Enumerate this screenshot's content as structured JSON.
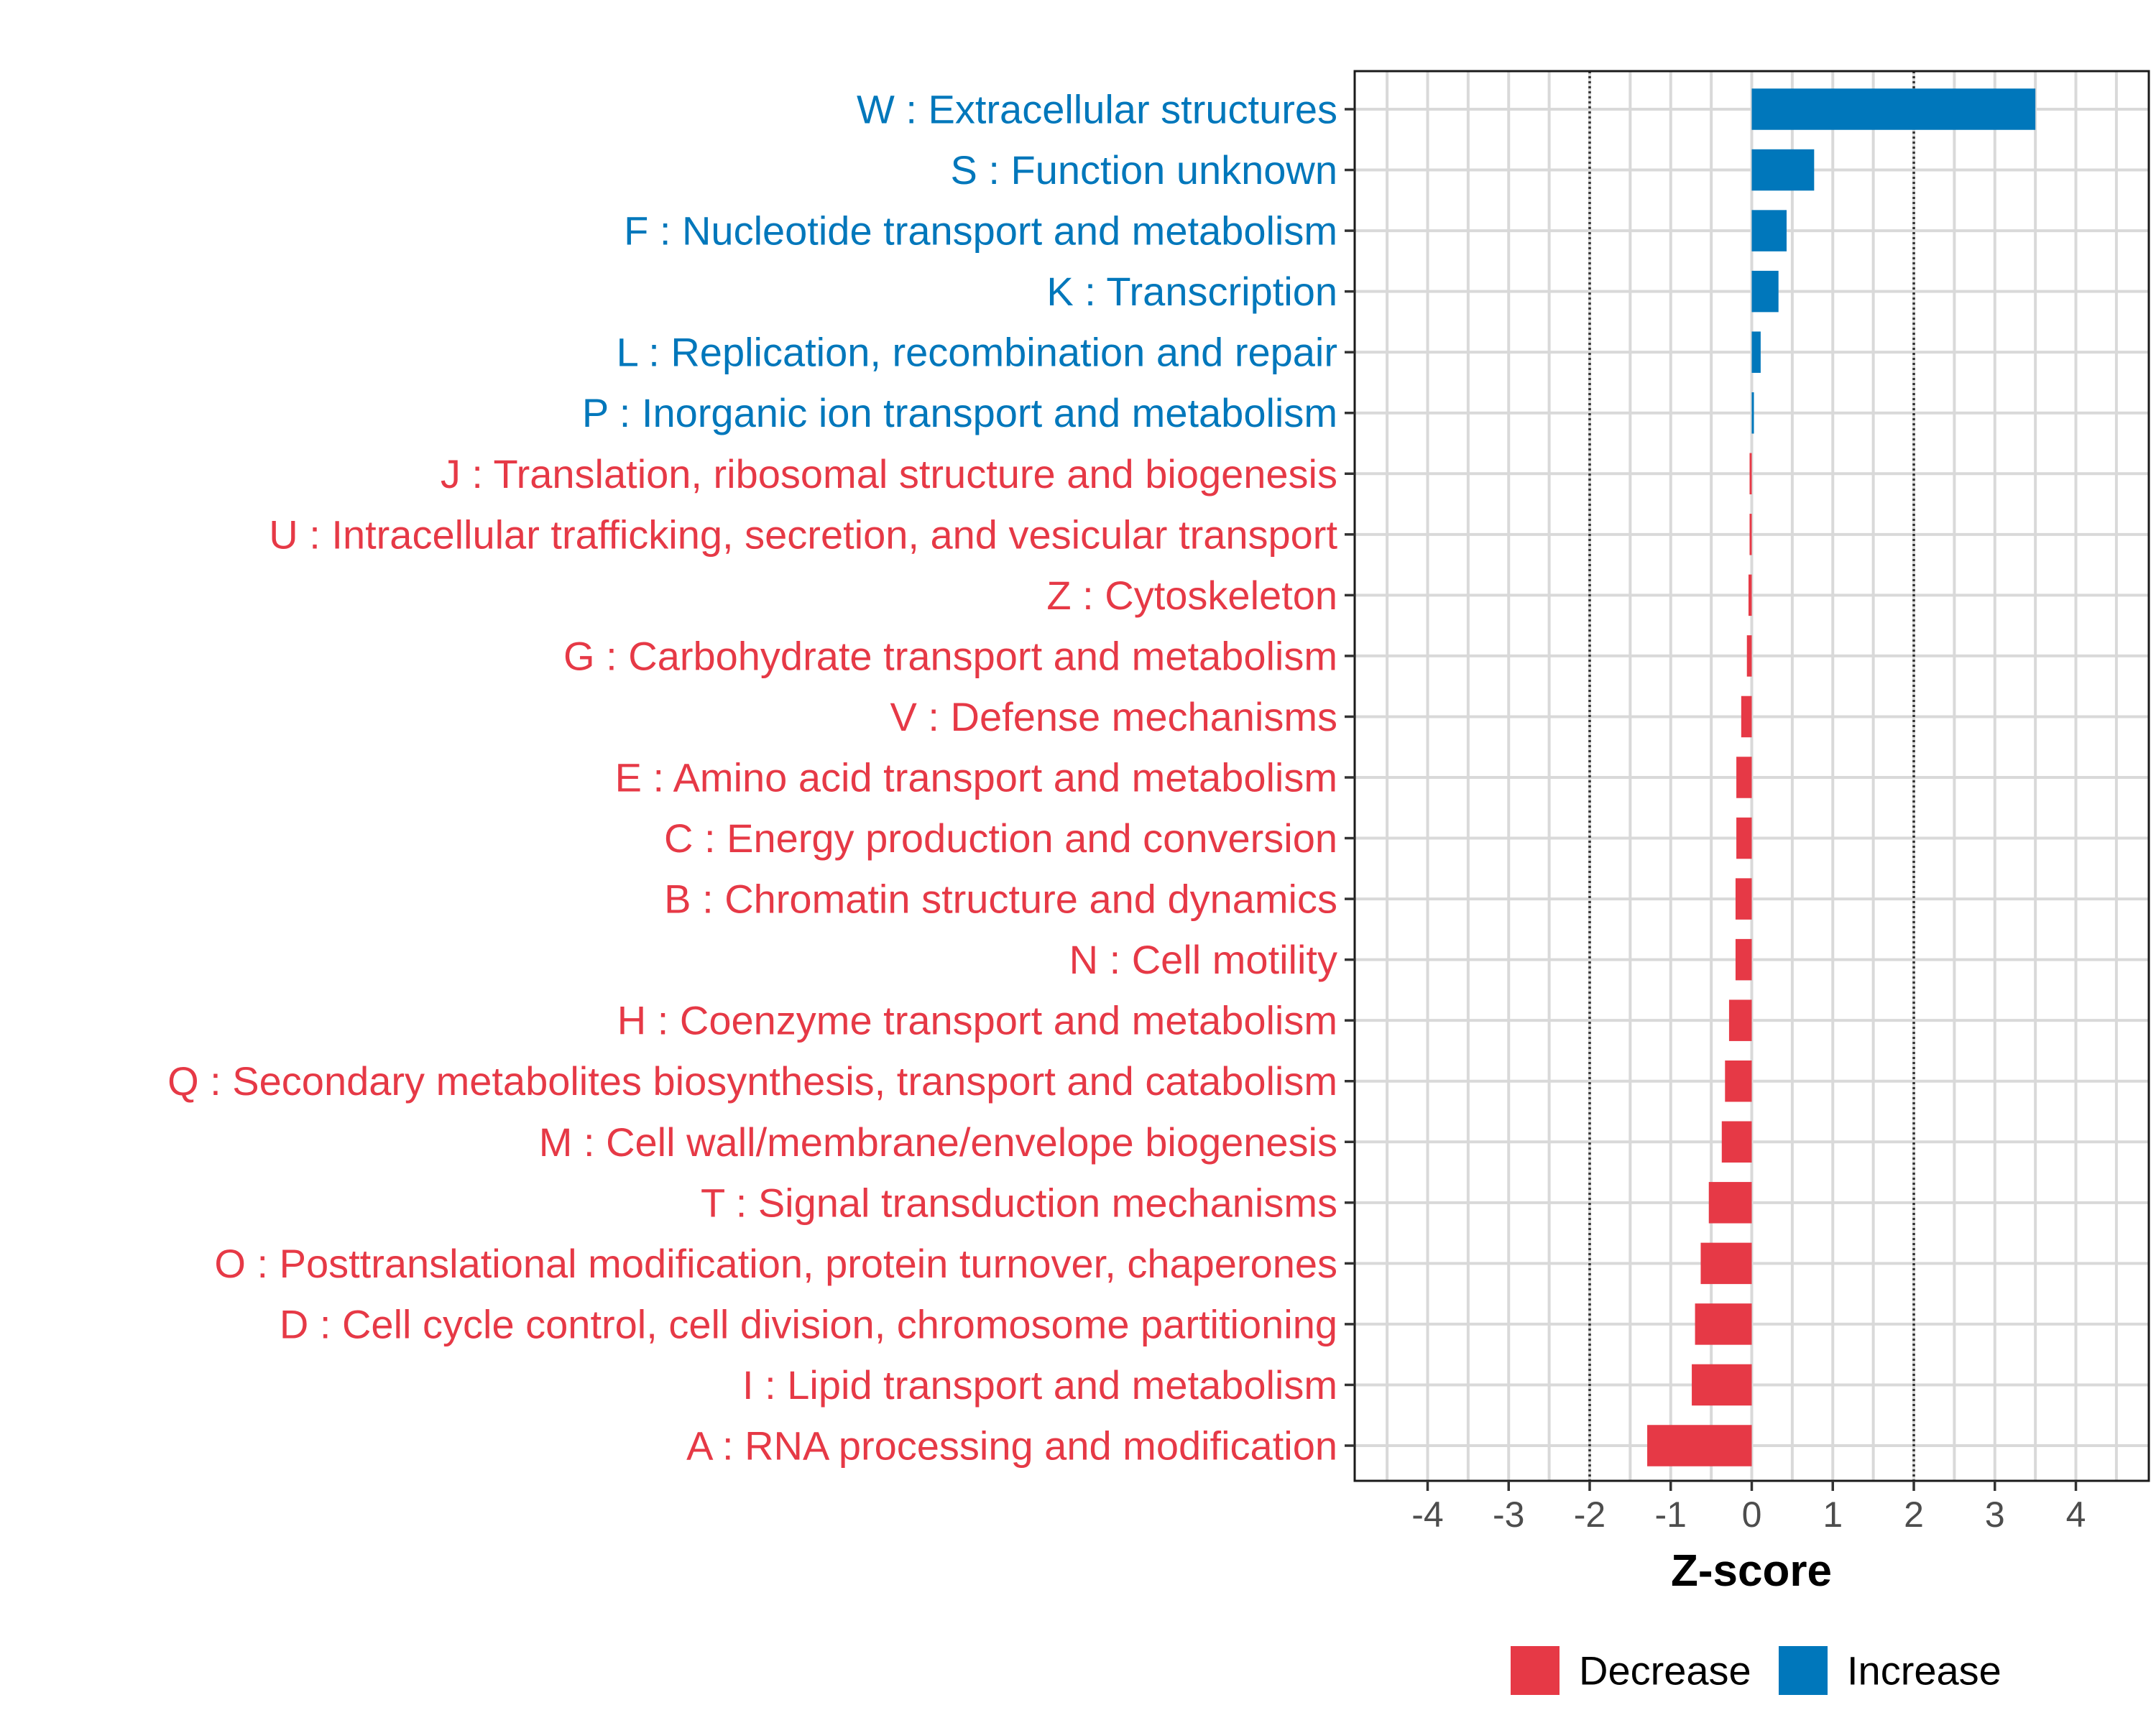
{
  "chart_data": {
    "type": "bar",
    "orientation": "horizontal",
    "xlabel": "Z-score",
    "xlim": [
      -4.9,
      4.9
    ],
    "xticks": [
      -4,
      -3,
      -2,
      -1,
      0,
      1,
      2,
      3,
      4
    ],
    "xtick_labels": [
      "-4",
      "-3",
      "-2",
      "-1",
      "0",
      "1",
      "2",
      "3",
      "4"
    ],
    "reference_lines": [
      -2,
      2
    ],
    "grid": true,
    "colors": {
      "Decrease": "#e63946",
      "Increase": "#0077bb"
    },
    "legend": {
      "position": "bottom",
      "entries": [
        {
          "name": "Decrease",
          "color": "#e63946"
        },
        {
          "name": "Increase",
          "color": "#0077bb"
        }
      ]
    },
    "categories": [
      "W : Extracellular structures",
      "S : Function unknown",
      "F : Nucleotide transport and metabolism",
      "K : Transcription",
      "L : Replication, recombination and repair",
      "P : Inorganic ion transport and metabolism",
      "J : Translation, ribosomal structure and biogenesis",
      "U : Intracellular trafficking, secretion, and vesicular transport",
      "Z : Cytoskeleton",
      "G : Carbohydrate transport and metabolism",
      "V : Defense mechanisms",
      "E : Amino acid transport and metabolism",
      "C : Energy production and conversion",
      "B : Chromatin structure and dynamics",
      "N : Cell motility",
      "H : Coenzyme transport and metabolism",
      "Q : Secondary metabolites biosynthesis, transport and catabolism",
      "M : Cell wall/membrane/envelope biogenesis",
      "T : Signal transduction mechanisms",
      "O : Posttranslational modification, protein turnover, chaperones",
      "D : Cell cycle control, cell division, chromosome partitioning",
      "I : Lipid transport and metabolism",
      "A : RNA processing and modification"
    ],
    "values": [
      3.5,
      0.77,
      0.43,
      0.33,
      0.11,
      0.02,
      -0.01,
      -0.02,
      -0.04,
      -0.06,
      -0.13,
      -0.19,
      -0.19,
      -0.2,
      -0.2,
      -0.28,
      -0.33,
      -0.37,
      -0.53,
      -0.63,
      -0.7,
      -0.74,
      -1.29
    ],
    "groups": [
      "Increase",
      "Increase",
      "Increase",
      "Increase",
      "Increase",
      "Increase",
      "Decrease",
      "Decrease",
      "Decrease",
      "Decrease",
      "Decrease",
      "Decrease",
      "Decrease",
      "Decrease",
      "Decrease",
      "Decrease",
      "Decrease",
      "Decrease",
      "Decrease",
      "Decrease",
      "Decrease",
      "Decrease",
      "Decrease"
    ]
  }
}
